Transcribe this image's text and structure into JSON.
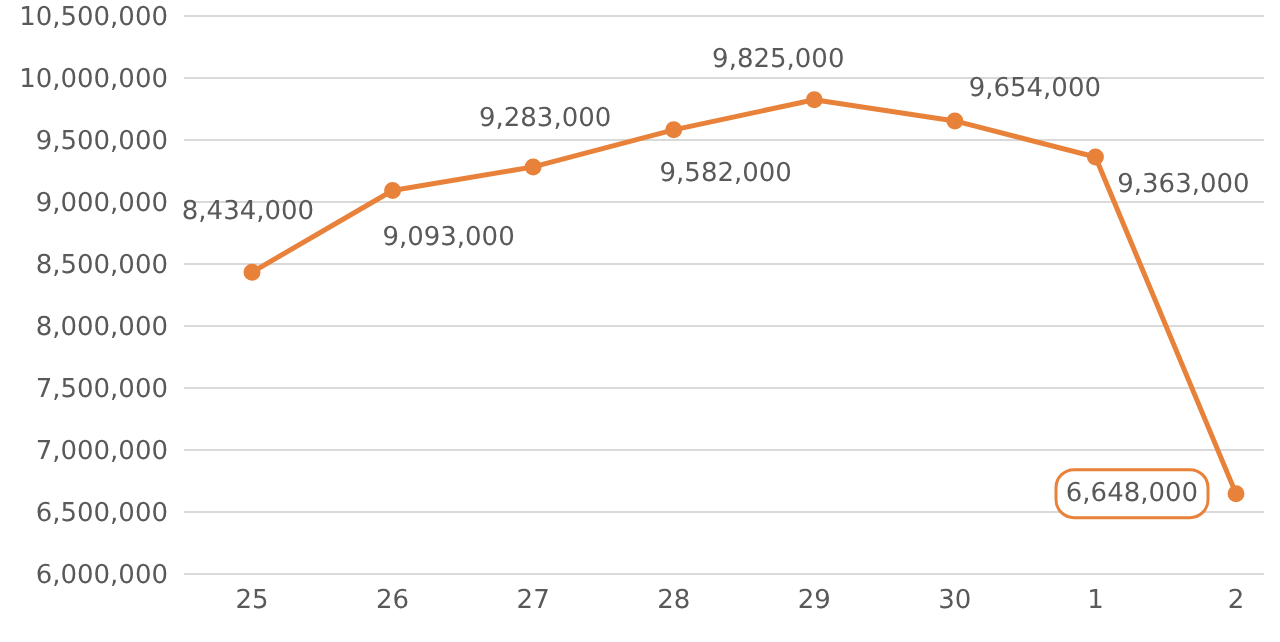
{
  "chart_data": {
    "type": "line",
    "categories": [
      "25",
      "26",
      "27",
      "28",
      "29",
      "30",
      "1",
      "2"
    ],
    "series": [
      {
        "color": "#e8823a",
        "values": [
          8434000,
          9093000,
          9283000,
          9582000,
          9825000,
          9654000,
          9363000,
          6648000
        ],
        "value_labels": [
          "8,434,000",
          "9,093,000",
          "9,283,000",
          "9,582,000",
          "9,825,000",
          "9,654,000",
          "9,363,000",
          "6,648,000"
        ]
      }
    ],
    "ylim": [
      6000000,
      10500000
    ],
    "yticks": [
      {
        "value": 6000000,
        "label": "6,000,000"
      },
      {
        "value": 6500000,
        "label": "6,500,000"
      },
      {
        "value": 7000000,
        "label": "7,000,000"
      },
      {
        "value": 7500000,
        "label": "7,500,000"
      },
      {
        "value": 8000000,
        "label": "8,000,000"
      },
      {
        "value": 8500000,
        "label": "8,500,000"
      },
      {
        "value": 9000000,
        "label": "9,000,000"
      },
      {
        "value": 9500000,
        "label": "9,500,000"
      },
      {
        "value": 10000000,
        "label": "10,000,000"
      },
      {
        "value": 10500000,
        "label": "10,500,000"
      }
    ],
    "grid": "y",
    "marker": "circle",
    "line_style": "solid"
  }
}
